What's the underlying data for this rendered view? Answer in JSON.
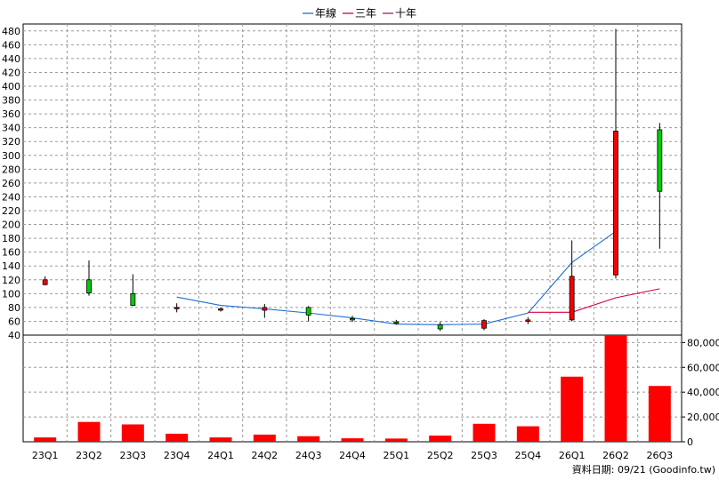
{
  "chart_data": {
    "type": "candlestick_with_volume",
    "legend": [
      {
        "label": "年線",
        "color": "#1f6fd1"
      },
      {
        "label": "三年",
        "color": "#d2003a"
      },
      {
        "label": "十年",
        "color": "#9c1f6a"
      }
    ],
    "categories": [
      "23Q1",
      "23Q2",
      "23Q3",
      "23Q4",
      "24Q1",
      "24Q2",
      "24Q3",
      "24Q4",
      "25Q1",
      "25Q2",
      "25Q3",
      "25Q4",
      "26Q1",
      "26Q2",
      "26Q3"
    ],
    "price_axis": {
      "ylim": [
        40,
        490
      ],
      "ticks": [
        40,
        60,
        80,
        100,
        120,
        140,
        160,
        180,
        200,
        220,
        240,
        260,
        280,
        300,
        320,
        340,
        360,
        380,
        400,
        420,
        440,
        460,
        480
      ]
    },
    "volume_axis": {
      "ylim": [
        0,
        86000
      ],
      "ticks": [
        0,
        20000,
        40000,
        60000,
        80000
      ],
      "tick_labels": [
        "0",
        "20,000",
        "40,000",
        "60,000",
        "80,000"
      ]
    },
    "candles": [
      {
        "open": 113,
        "high": 125,
        "low": 112,
        "close": 120
      },
      {
        "open": 120,
        "high": 148,
        "low": 97,
        "close": 101
      },
      {
        "open": 100,
        "high": 128,
        "low": 82,
        "close": 83
      },
      {
        "open": 80,
        "high": 86,
        "low": 73,
        "close": 80
      },
      {
        "open": 77,
        "high": 80,
        "low": 74,
        "close": 78
      },
      {
        "open": 76,
        "high": 85,
        "low": 65,
        "close": 80
      },
      {
        "open": 80,
        "high": 82,
        "low": 60,
        "close": 69
      },
      {
        "open": 64,
        "high": 68,
        "low": 59,
        "close": 62
      },
      {
        "open": 59,
        "high": 62,
        "low": 55,
        "close": 57
      },
      {
        "open": 55,
        "high": 59,
        "low": 46,
        "close": 49
      },
      {
        "open": 50,
        "high": 63,
        "low": 47,
        "close": 61
      },
      {
        "open": 60,
        "high": 66,
        "low": 56,
        "close": 62
      },
      {
        "open": 62,
        "high": 177,
        "low": 60,
        "close": 125
      },
      {
        "open": 127,
        "high": 483,
        "low": 122,
        "close": 335
      },
      {
        "open": 337,
        "high": 347,
        "low": 165,
        "close": 248
      }
    ],
    "annual_line": {
      "from_index": 3,
      "values": [
        95,
        83,
        78,
        72,
        65,
        56,
        55,
        56,
        72,
        145,
        190
      ]
    },
    "three_year_line": {
      "from_index": 11,
      "values": [
        73,
        73,
        94,
        107
      ]
    },
    "volume": [
      3500,
      16000,
      14000,
      6500,
      3500,
      5800,
      4500,
      2800,
      2600,
      5000,
      14500,
      12500,
      52500,
      86000,
      45000
    ],
    "footer": "資料日期: 09/21  (Goodinfo.tw)"
  }
}
